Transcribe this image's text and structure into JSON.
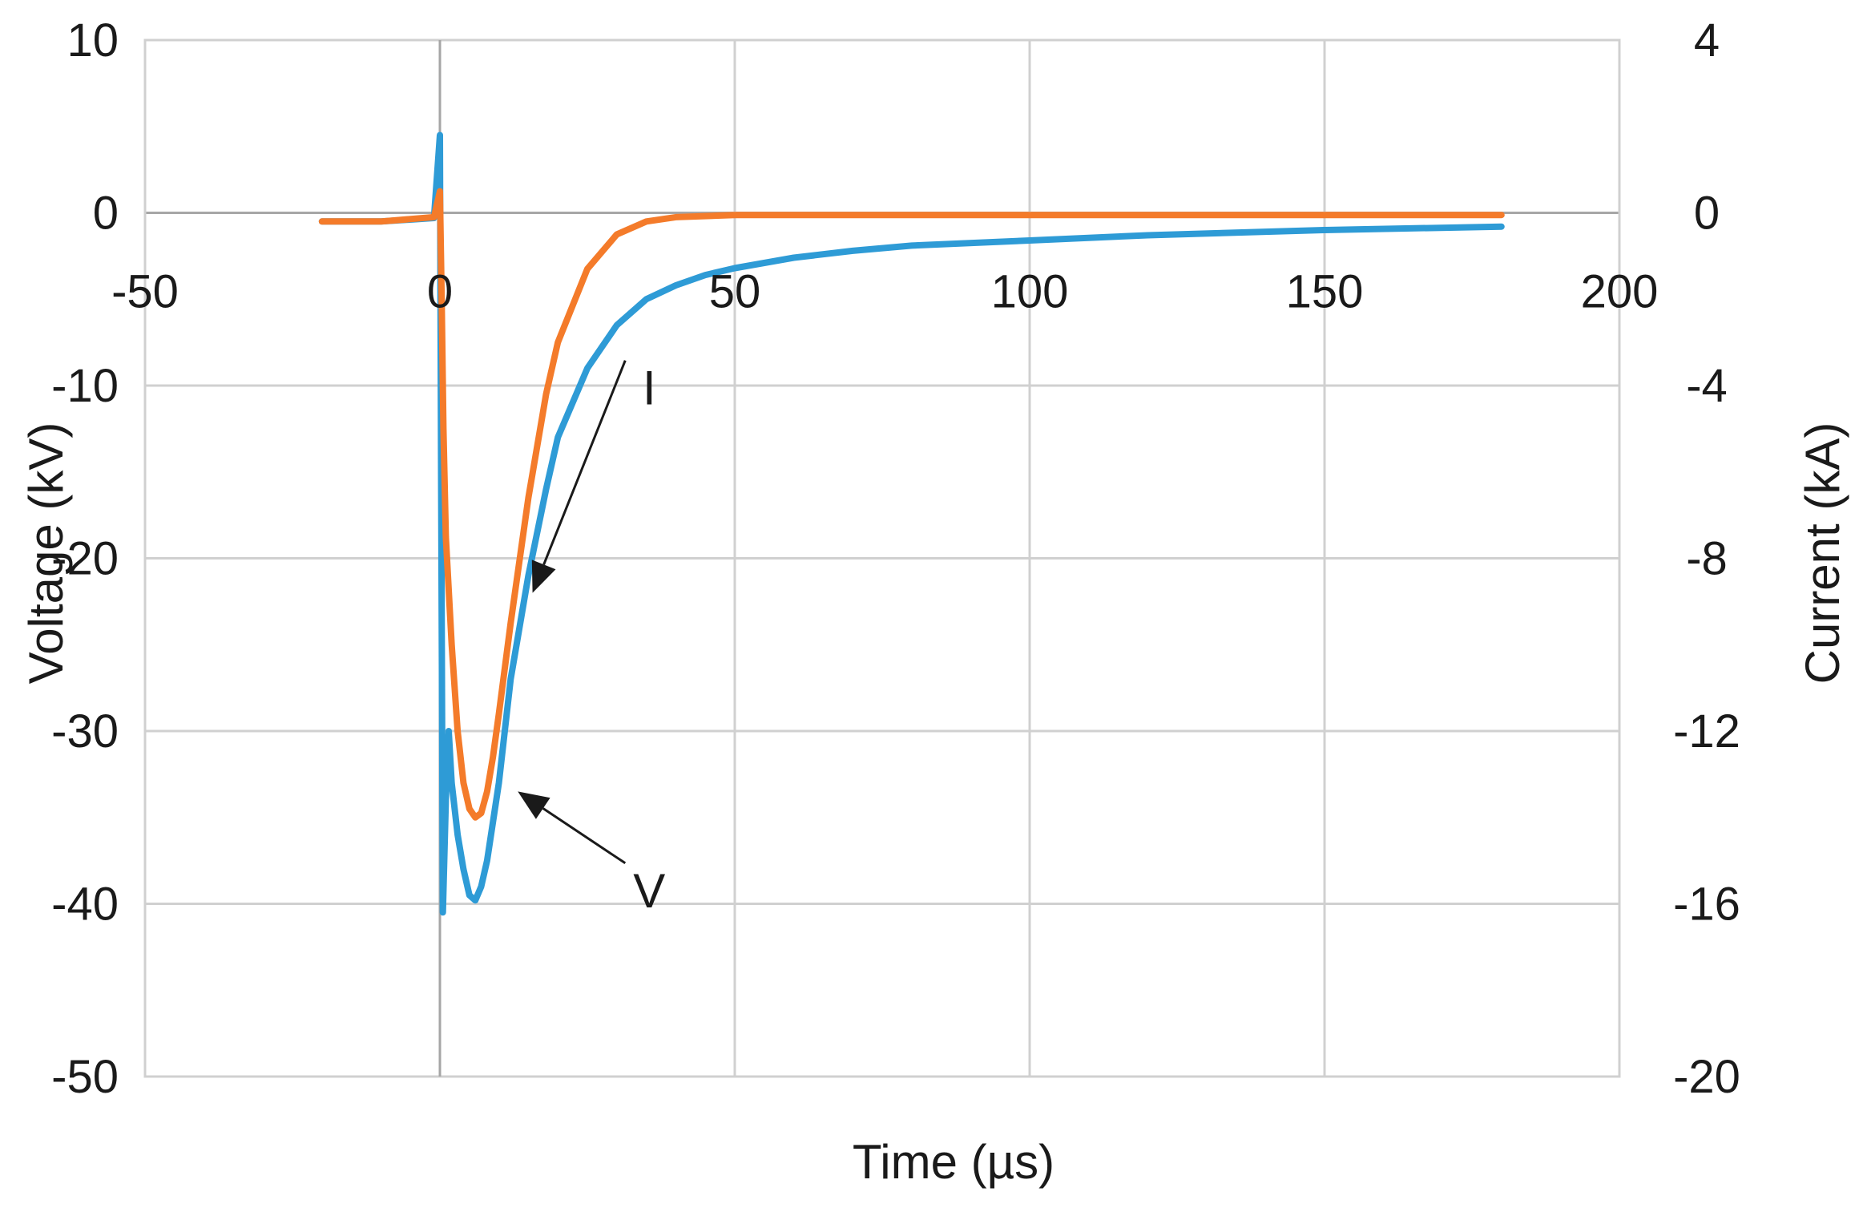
{
  "chart_data": {
    "type": "line",
    "title": "",
    "xlabel": "Time (µs)",
    "ylabel_left": "Voltage (kV)",
    "ylabel_right": "Current (kA)",
    "xlim": [
      -50,
      200
    ],
    "ylim_left": [
      -50,
      10
    ],
    "ylim_right": [
      -20,
      4
    ],
    "x_ticks": [
      "-50",
      "0",
      "50",
      "100",
      "150",
      "200"
    ],
    "y_left_ticks": [
      "10",
      "0",
      "-10",
      "-20",
      "-30",
      "-40",
      "-50"
    ],
    "y_right_ticks": [
      "4",
      "0",
      "-4",
      "-8",
      "-12",
      "-16",
      "-20"
    ],
    "grid": true,
    "series": [
      {
        "name": "V",
        "axis": "left",
        "color": "#2e9bd6",
        "x": [
          -20,
          -10,
          -1,
          0,
          0.2,
          0.5,
          1,
          1.5,
          2,
          3,
          4,
          5,
          6,
          7,
          8,
          10,
          12,
          15,
          18,
          20,
          25,
          30,
          35,
          40,
          45,
          50,
          60,
          70,
          80,
          100,
          120,
          150,
          180
        ],
        "y": [
          -0.5,
          -0.5,
          -0.3,
          4.5,
          -15,
          -40.5,
          -34,
          -30,
          -33,
          -36,
          -38,
          -39.5,
          -39.8,
          -39,
          -37.5,
          -33,
          -27,
          -21,
          -16,
          -13,
          -9,
          -6.5,
          -5,
          -4.2,
          -3.6,
          -3.2,
          -2.6,
          -2.2,
          -1.9,
          -1.6,
          -1.3,
          -1.0,
          -0.8
        ]
      },
      {
        "name": "I",
        "axis": "right",
        "color": "#f47b2a",
        "x": [
          -20,
          -10,
          -1,
          0,
          0.3,
          0.6,
          1,
          2,
          3,
          4,
          5,
          6,
          7,
          8,
          9,
          10,
          12,
          15,
          18,
          20,
          25,
          30,
          35,
          40,
          50,
          100,
          180
        ],
        "y": [
          -0.2,
          -0.2,
          -0.1,
          0.5,
          -2,
          -5,
          -7.5,
          -10,
          -12,
          -13.2,
          -13.8,
          -14,
          -13.9,
          -13.4,
          -12.6,
          -11.6,
          -9.5,
          -6.6,
          -4.2,
          -3,
          -1.3,
          -0.5,
          -0.2,
          -0.1,
          -0.05,
          -0.05,
          -0.05
        ]
      }
    ],
    "annotations": [
      {
        "text": "I",
        "target": [
          15.7,
          -8.8
        ],
        "axis": "right",
        "label_x": 35.5,
        "label_y": -11.1
      },
      {
        "text": "V",
        "target": [
          13.2,
          -33.5
        ],
        "axis": "left",
        "label_x": 35.5,
        "label_y": -40.2
      }
    ]
  }
}
